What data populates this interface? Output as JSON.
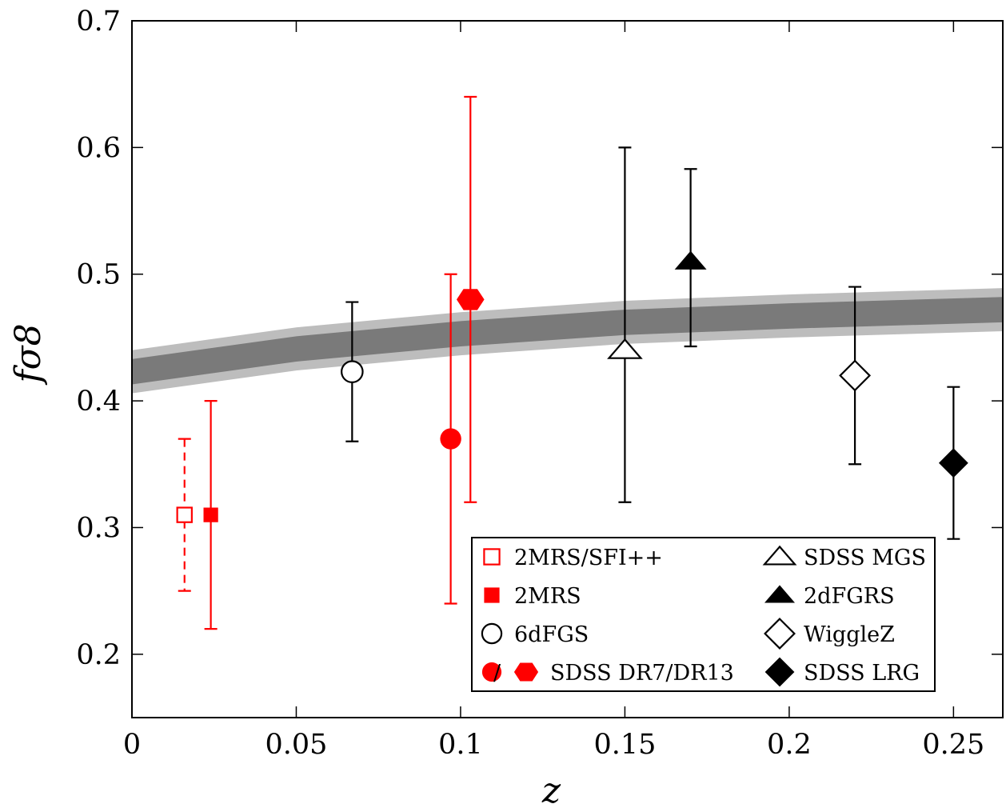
{
  "chart_data": {
    "type": "scatter",
    "xlabel": "z",
    "ylabel": "fσ8",
    "xlim": [
      0,
      0.265
    ],
    "ylim": [
      0.15,
      0.7
    ],
    "x_ticks": [
      0,
      0.05,
      0.1,
      0.15,
      0.2,
      0.25
    ],
    "x_tick_labels": [
      "0",
      "0.05",
      "0.1",
      "0.15",
      "0.2",
      "0.25"
    ],
    "y_ticks": [
      0.2,
      0.3,
      0.4,
      0.5,
      0.6,
      0.7
    ],
    "y_tick_labels": [
      "0.2",
      "0.3",
      "0.4",
      "0.5",
      "0.6",
      "0.7"
    ],
    "grid": false,
    "legend_position": "bottom-right",
    "band": {
      "x": [
        0,
        0.05,
        0.1,
        0.15,
        0.2,
        0.265
      ],
      "center": [
        0.423,
        0.441,
        0.453,
        0.462,
        0.467,
        0.472
      ],
      "inner_halfwidth": 0.01,
      "outer_halfwidth": 0.017,
      "inner_color": "#7a7a7a",
      "outer_color": "#bdbdbd"
    },
    "series": [
      {
        "name": "2MRS/SFI++",
        "marker": "square-open",
        "color": "#ff0000",
        "dashed": true,
        "points": [
          {
            "x": 0.016,
            "y": 0.31,
            "yerr_low": 0.25,
            "yerr_high": 0.37
          }
        ]
      },
      {
        "name": "2MRS",
        "marker": "square-filled",
        "color": "#ff0000",
        "dashed": false,
        "points": [
          {
            "x": 0.024,
            "y": 0.31,
            "yerr_low": 0.22,
            "yerr_high": 0.4
          }
        ]
      },
      {
        "name": "6dFGS",
        "marker": "circle-open",
        "color": "#000000",
        "dashed": false,
        "points": [
          {
            "x": 0.067,
            "y": 0.423,
            "yerr_low": 0.368,
            "yerr_high": 0.478
          }
        ]
      },
      {
        "name": "SDSS DR7",
        "marker": "circle-filled",
        "color": "#ff0000",
        "dashed": false,
        "points": [
          {
            "x": 0.097,
            "y": 0.37,
            "yerr_low": 0.24,
            "yerr_high": 0.5
          }
        ]
      },
      {
        "name": "SDSS DR13",
        "marker": "hexagon-filled",
        "color": "#ff0000",
        "dashed": false,
        "points": [
          {
            "x": 0.103,
            "y": 0.48,
            "yerr_low": 0.32,
            "yerr_high": 0.64
          }
        ]
      },
      {
        "name": "SDSS MGS",
        "marker": "triangle-open",
        "color": "#000000",
        "dashed": false,
        "points": [
          {
            "x": 0.15,
            "y": 0.44,
            "yerr_low": 0.32,
            "yerr_high": 0.6
          }
        ]
      },
      {
        "name": "2dFGRS",
        "marker": "triangle-filled",
        "color": "#000000",
        "dashed": false,
        "points": [
          {
            "x": 0.17,
            "y": 0.51,
            "yerr_low": 0.443,
            "yerr_high": 0.583
          }
        ]
      },
      {
        "name": "WiggleZ",
        "marker": "diamond-open",
        "color": "#000000",
        "dashed": false,
        "points": [
          {
            "x": 0.22,
            "y": 0.42,
            "yerr_low": 0.35,
            "yerr_high": 0.49
          }
        ]
      },
      {
        "name": "SDSS LRG",
        "marker": "diamond-filled",
        "color": "#000000",
        "dashed": false,
        "points": [
          {
            "x": 0.25,
            "y": 0.351,
            "yerr_low": 0.291,
            "yerr_high": 0.411
          }
        ]
      }
    ],
    "legend": {
      "entries": [
        {
          "label": "2MRS/SFI++",
          "markers": [
            "square-open"
          ],
          "color": "#ff0000"
        },
        {
          "label": "2MRS",
          "markers": [
            "square-filled"
          ],
          "color": "#ff0000"
        },
        {
          "label": "6dFGS",
          "markers": [
            "circle-open"
          ],
          "color": "#000000"
        },
        {
          "label": "SDSS DR7/DR13",
          "markers": [
            "circle-filled",
            "hexagon-filled"
          ],
          "color": "#ff0000",
          "separator": "/"
        },
        {
          "label": "SDSS MGS",
          "markers": [
            "triangle-open"
          ],
          "color": "#000000"
        },
        {
          "label": "2dFGRS",
          "markers": [
            "triangle-filled"
          ],
          "color": "#000000"
        },
        {
          "label": "WiggleZ",
          "markers": [
            "diamond-open"
          ],
          "color": "#000000"
        },
        {
          "label": "SDSS LRG",
          "markers": [
            "diamond-filled"
          ],
          "color": "#000000"
        }
      ]
    }
  }
}
